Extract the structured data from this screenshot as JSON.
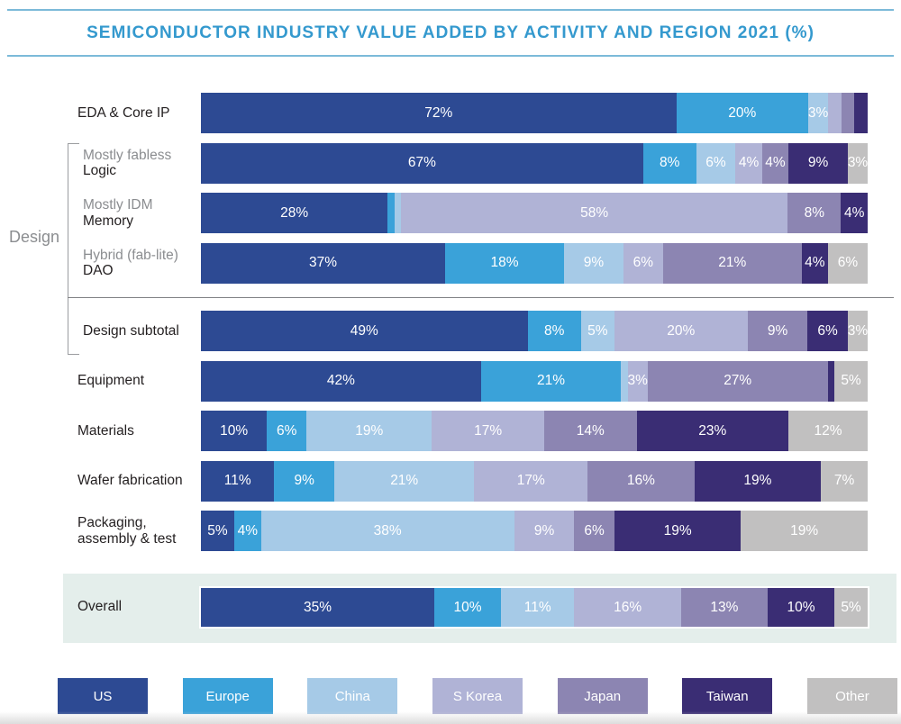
{
  "title": "SEMICONDUCTOR INDUSTRY VALUE ADDED BY ACTIVITY AND REGION 2021 (%)",
  "design_group_label": "Design",
  "colors": {
    "title": "#3499CE",
    "rule": "#7CBAD9",
    "band": "#E4EEEB",
    "label_dark": "#231F20",
    "label_muted": "#8B8D90",
    "bracket": "#9B9DA0",
    "regions": {
      "US": "#2D4A93",
      "Europe": "#3AA2D9",
      "China": "#A6CAE7",
      "S Korea": "#B0B3D6",
      "Japan": "#8C85B2",
      "Taiwan": "#3A2D74",
      "Other": "#C1C0C0"
    }
  },
  "chart_data": {
    "type": "bar",
    "stacked": true,
    "orientation": "horizontal",
    "unit": "%",
    "title": "SEMICONDUCTOR INDUSTRY VALUE ADDED BY ACTIVITY AND REGION 2021 (%)",
    "legend": [
      "US",
      "Europe",
      "China",
      "S Korea",
      "Japan",
      "Taiwan",
      "Other"
    ],
    "legend_position": "bottom",
    "categories": [
      "EDA & Core IP",
      "Mostly fabless Logic",
      "Mostly IDM Memory",
      "Hybrid (fab-lite) DAO",
      "Design subtotal",
      "Equipment",
      "Materials",
      "Wafer fabrication",
      "Packaging, assembly & test",
      "Overall"
    ],
    "rows": [
      {
        "label_lines": [
          "EDA & Core IP"
        ],
        "muted_first": false,
        "design_group": false,
        "overall": false,
        "values": [
          72,
          20,
          3,
          2,
          2,
          2,
          0
        ],
        "value_labels": [
          "72%",
          "20%",
          "3%",
          "",
          "",
          "",
          ""
        ]
      },
      {
        "label_lines": [
          "Mostly fabless",
          "Logic"
        ],
        "muted_first": true,
        "design_group": true,
        "overall": false,
        "values": [
          67,
          8,
          6,
          4,
          4,
          9,
          3
        ],
        "value_labels": [
          "67%",
          "8%",
          "6%",
          "4%",
          "4%",
          "9%",
          "3%"
        ]
      },
      {
        "label_lines": [
          "Mostly IDM",
          "Memory"
        ],
        "muted_first": true,
        "design_group": true,
        "overall": false,
        "values": [
          28,
          1,
          1,
          58,
          8,
          4,
          0
        ],
        "value_labels": [
          "28%",
          "",
          "",
          "58%",
          "8%",
          "4%",
          ""
        ]
      },
      {
        "label_lines": [
          "Hybrid (fab-lite)",
          "DAO"
        ],
        "muted_first": true,
        "design_group": true,
        "overall": false,
        "values": [
          37,
          18,
          9,
          6,
          21,
          4,
          6
        ],
        "value_labels": [
          "37%",
          "18%",
          "9%",
          "6%",
          "21%",
          "4%",
          "6%"
        ]
      },
      {
        "label_lines": [
          "Design subtotal"
        ],
        "muted_first": false,
        "design_group": true,
        "overall": false,
        "values": [
          49,
          8,
          5,
          20,
          9,
          6,
          3
        ],
        "value_labels": [
          "49%",
          "8%",
          "5%",
          "20%",
          "9%",
          "6%",
          "3%"
        ]
      },
      {
        "label_lines": [
          "Equipment"
        ],
        "muted_first": false,
        "design_group": false,
        "overall": false,
        "values": [
          42,
          21,
          1,
          3,
          27,
          1,
          5
        ],
        "value_labels": [
          "42%",
          "21%",
          "",
          "3%",
          "27%",
          "",
          "5%"
        ]
      },
      {
        "label_lines": [
          "Materials"
        ],
        "muted_first": false,
        "design_group": false,
        "overall": false,
        "values": [
          10,
          6,
          19,
          17,
          14,
          23,
          12
        ],
        "value_labels": [
          "10%",
          "6%",
          "19%",
          "17%",
          "14%",
          "23%",
          "12%"
        ]
      },
      {
        "label_lines": [
          "Wafer fabrication"
        ],
        "muted_first": false,
        "design_group": false,
        "overall": false,
        "values": [
          11,
          9,
          21,
          17,
          16,
          19,
          7
        ],
        "value_labels": [
          "11%",
          "9%",
          "21%",
          "17%",
          "16%",
          "19%",
          "7%"
        ]
      },
      {
        "label_lines": [
          "Packaging,",
          "assembly & test"
        ],
        "muted_first": false,
        "design_group": false,
        "overall": false,
        "values": [
          5,
          4,
          38,
          9,
          6,
          19,
          19
        ],
        "value_labels": [
          "5%",
          "4%",
          "38%",
          "9%",
          "6%",
          "19%",
          "19%"
        ]
      },
      {
        "label_lines": [
          "Overall"
        ],
        "muted_first": false,
        "design_group": false,
        "overall": true,
        "values": [
          35,
          10,
          11,
          16,
          13,
          10,
          5
        ],
        "value_labels": [
          "35%",
          "10%",
          "11%",
          "16%",
          "13%",
          "10%",
          "5%"
        ]
      }
    ]
  }
}
